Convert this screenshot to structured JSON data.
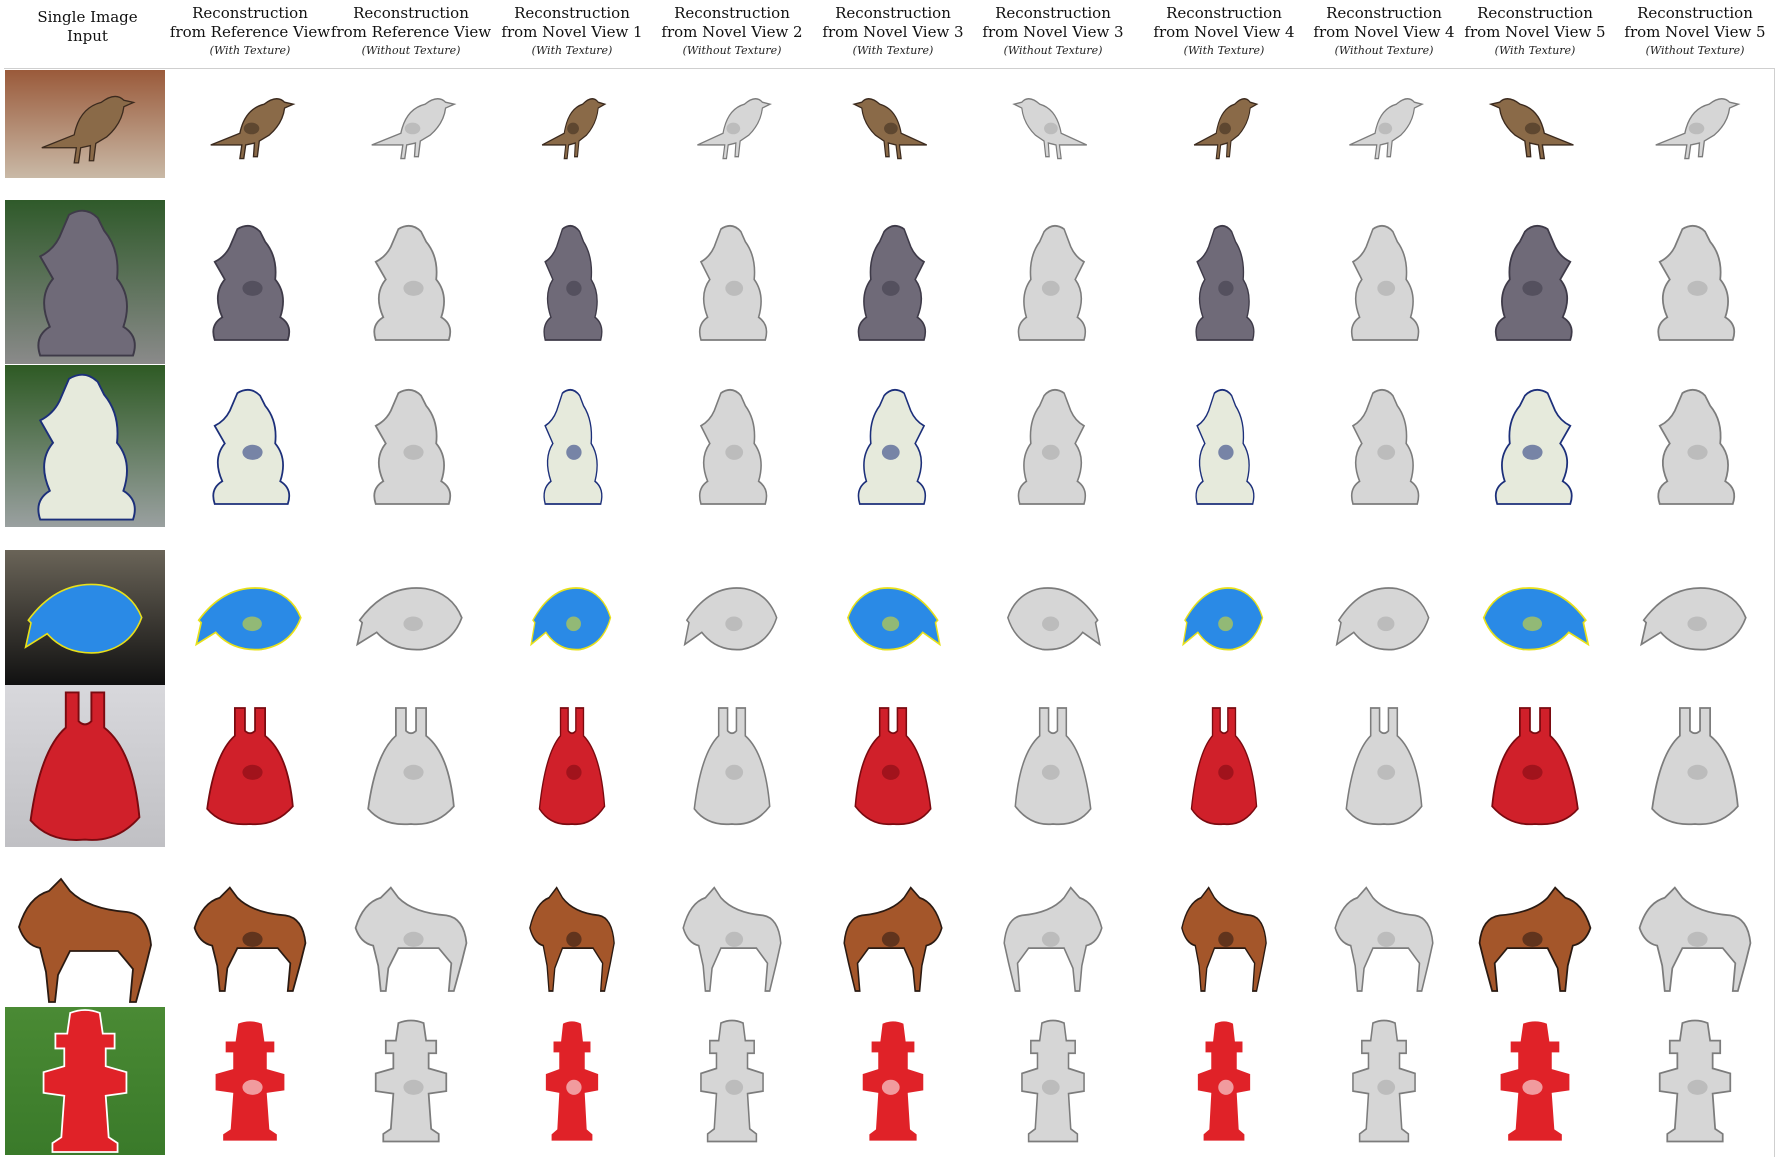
{
  "header": {
    "input": {
      "line1": "Single Image",
      "line2": "Input"
    },
    "columns": [
      {
        "line1": "Reconstruction",
        "line2": "from Reference View",
        "sub": "(With Texture)"
      },
      {
        "line1": "Reconstruction",
        "line2": "from Reference View",
        "sub": "(Without Texture)"
      },
      {
        "line1": "Reconstruction",
        "line2": "from Novel View 1",
        "sub": "(With Texture)"
      },
      {
        "line1": "Reconstruction",
        "line2": "from Novel View 2",
        "sub": "(Without Texture)"
      },
      {
        "line1": "Reconstruction",
        "line2": "from Novel View 3",
        "sub": "(With Texture)"
      },
      {
        "line1": "Reconstruction",
        "line2": "from Novel View 3",
        "sub": "(Without Texture)"
      },
      {
        "line1": "Reconstruction",
        "line2": "from Novel View 4",
        "sub": "(With Texture)"
      },
      {
        "line1": "Reconstruction",
        "line2": "from Novel View 4",
        "sub": "(Without Texture)"
      },
      {
        "line1": "Reconstruction",
        "line2": "from Novel View 5",
        "sub": "(With Texture)"
      },
      {
        "line1": "Reconstruction",
        "line2": "from Novel View 5",
        "sub": "(Without Texture)"
      }
    ]
  },
  "rows": [
    {
      "object": "bird",
      "main_color": "#8a6a48",
      "accent_color": "#3b2a1e",
      "bg_colors": [
        "#9a5a3a",
        "#c9b9a6"
      ]
    },
    {
      "object": "dragon-statue",
      "main_color": "#6f6a78",
      "accent_color": "#3e3a48",
      "bg_colors": [
        "#2f5a2a",
        "#8a8a8a"
      ]
    },
    {
      "object": "dragon-statue-white",
      "main_color": "#e6eadc",
      "accent_color": "#1c2f7a",
      "bg_colors": [
        "#2e5a24",
        "#9aa0a0"
      ]
    },
    {
      "object": "fish",
      "main_color": "#2a8ae6",
      "accent_color": "#e8e01a",
      "bg_colors": [
        "#6a6458",
        "#111111"
      ]
    },
    {
      "object": "handbag",
      "main_color": "#d0202a",
      "accent_color": "#7a0a10",
      "bg_colors": [
        "#d8d8dc",
        "#c0c0c4"
      ]
    },
    {
      "object": "horse",
      "main_color": "#a4562a",
      "accent_color": "#2a1a12",
      "bg_colors": [
        "#ffffff",
        "#ffffff"
      ]
    },
    {
      "object": "fire-hydrant",
      "main_color": "#e02228",
      "accent_color": "#ffffff",
      "bg_colors": [
        "#4a8a34",
        "#3a7a2a"
      ]
    }
  ]
}
